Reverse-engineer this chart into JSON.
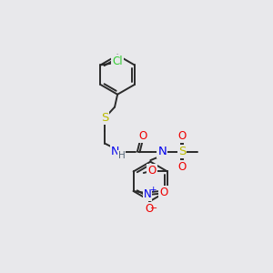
{
  "bg_color": "#e8e8eb",
  "atom_colors": {
    "C": "#1a1a1a",
    "N": "#0000ee",
    "O": "#ee0000",
    "S": "#bbbb00",
    "Cl": "#33cc33",
    "H": "#556677"
  },
  "bond_color": "#2a2a2a",
  "bond_lw": 1.4,
  "figsize": [
    3.0,
    3.0
  ],
  "dpi": 100
}
